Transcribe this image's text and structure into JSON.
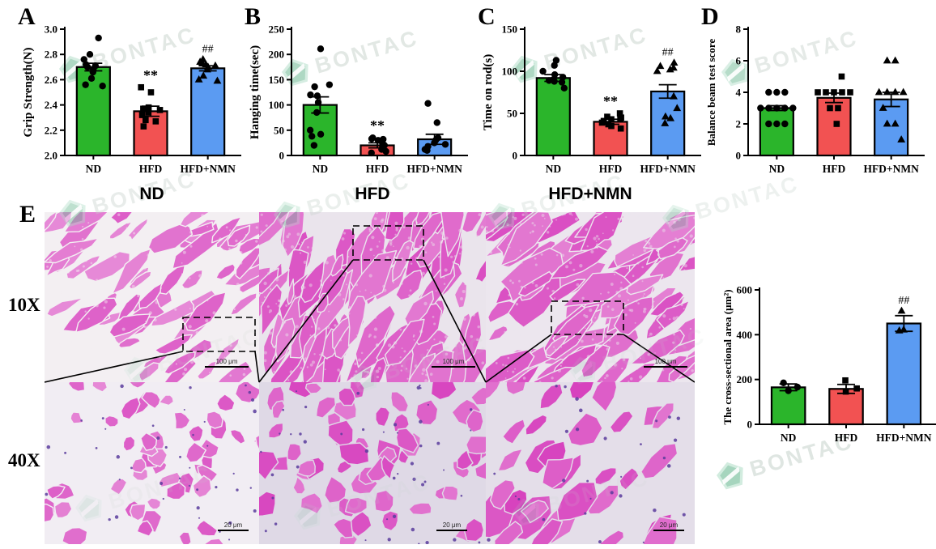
{
  "watermark": {
    "text": "BONTAC",
    "text_color": "#c6d2cb",
    "logo_green_dark": "#5fb389",
    "logo_green_light": "#aeddc6"
  },
  "chart_data": [
    {
      "panel": "A",
      "type": "bar",
      "ylabel": "Grip Strength(N)",
      "ylim": [
        2.0,
        3.0
      ],
      "yticks": {
        "values": [
          2.0,
          2.2,
          2.4,
          2.6,
          2.8,
          3.0
        ],
        "labels": [
          "2.0",
          "2.2",
          "2.4",
          "2.6",
          "2.8",
          "3.0"
        ]
      },
      "categories": [
        "ND",
        "HFD",
        "HFD+NMN"
      ],
      "series": [
        {
          "name": "ND",
          "color": "#2bb52b",
          "marker": "circle",
          "mean": 2.7,
          "sem": 0.03,
          "sig": "",
          "points": [
            2.93,
            2.8,
            2.76,
            2.72,
            2.71,
            2.7,
            2.68,
            2.66,
            2.61,
            2.56,
            2.55
          ]
        },
        {
          "name": "HFD",
          "color": "#f25252",
          "marker": "square",
          "mean": 2.35,
          "sem": 0.04,
          "sig": "**",
          "points": [
            2.54,
            2.5,
            2.38,
            2.37,
            2.36,
            2.34,
            2.32,
            2.28,
            2.27,
            2.23
          ]
        },
        {
          "name": "HFD+NMN",
          "color": "#5b9bf2",
          "marker": "triangle",
          "mean": 2.69,
          "sem": 0.02,
          "sig": "##",
          "points": [
            2.76,
            2.74,
            2.73,
            2.72,
            2.71,
            2.7,
            2.68,
            2.63,
            2.6,
            2.59
          ]
        }
      ]
    },
    {
      "panel": "B",
      "type": "bar",
      "ylabel": "Hanging time(sec)",
      "ylim": [
        0,
        250
      ],
      "yticks": {
        "values": [
          0,
          50,
          100,
          150,
          200,
          250
        ],
        "labels": [
          "0",
          "50",
          "100",
          "150",
          "200",
          "250"
        ]
      },
      "categories": [
        "ND",
        "HFD",
        "HFD+NMN"
      ],
      "series": [
        {
          "name": "ND",
          "color": "#2bb52b",
          "marker": "circle",
          "mean": 100,
          "sem": 16,
          "sig": "",
          "points": [
            211,
            140,
            136,
            120,
            118,
            105,
            85,
            50,
            42,
            38,
            20
          ]
        },
        {
          "name": "HFD",
          "color": "#f25252",
          "marker": "circle",
          "mean": 20,
          "sem": 5,
          "sig": "**",
          "points": [
            35,
            33,
            32,
            30,
            25,
            20,
            15,
            12,
            8,
            5
          ]
        },
        {
          "name": "HFD+NMN",
          "color": "#5b9bf2",
          "marker": "circle",
          "mean": 32,
          "sem": 10,
          "sig": "",
          "points": [
            103,
            65,
            35,
            30,
            25,
            22,
            18,
            12,
            10
          ]
        }
      ]
    },
    {
      "panel": "C",
      "type": "bar",
      "ylabel": "Time on rod(s)",
      "ylim": [
        0,
        150
      ],
      "yticks": {
        "values": [
          0,
          50,
          100,
          150
        ],
        "labels": [
          "0",
          "50",
          "100",
          "150"
        ]
      },
      "categories": [
        "ND",
        "HFD",
        "HFD+NMN"
      ],
      "series": [
        {
          "name": "ND",
          "color": "#2bb52b",
          "marker": "circle",
          "mean": 92,
          "sem": 4,
          "sig": "",
          "points": [
            113,
            107,
            100,
            96,
            93,
            90,
            89,
            88,
            87,
            80
          ]
        },
        {
          "name": "HFD",
          "color": "#f25252",
          "marker": "square",
          "mean": 40,
          "sem": 3,
          "sig": "**",
          "points": [
            50,
            46,
            45,
            44,
            43,
            41,
            39,
            37,
            35,
            32
          ]
        },
        {
          "name": "HFD+NMN",
          "color": "#5b9bf2",
          "marker": "triangle",
          "mean": 76,
          "sem": 8,
          "sig": "##",
          "points": [
            110,
            106,
            104,
            102,
            100,
            70,
            56,
            46,
            44,
            38
          ]
        }
      ]
    },
    {
      "panel": "D",
      "type": "bar",
      "ylabel": "Balance beam test score",
      "ylim": [
        0,
        8
      ],
      "yticks": {
        "values": [
          0,
          2,
          4,
          6,
          8
        ],
        "labels": [
          "0",
          "2",
          "4",
          "6",
          "8"
        ]
      },
      "categories": [
        "ND",
        "HFD",
        "HFD+NMN"
      ],
      "series": [
        {
          "name": "ND",
          "color": "#2bb52b",
          "marker": "circle",
          "mean": 3.0,
          "sem": 0.15,
          "sig": "",
          "points": [
            4,
            4,
            4,
            3,
            3,
            3,
            3,
            3,
            2,
            2,
            2
          ]
        },
        {
          "name": "HFD",
          "color": "#f25252",
          "marker": "square",
          "mean": 3.65,
          "sem": 0.3,
          "sig": "",
          "points": [
            5,
            4,
            4,
            4,
            4,
            4,
            3,
            3,
            2
          ]
        },
        {
          "name": "HFD+NMN",
          "color": "#5b9bf2",
          "marker": "triangle",
          "mean": 3.55,
          "sem": 0.45,
          "sig": "",
          "points": [
            6,
            6,
            4,
            4,
            4,
            4,
            3,
            2,
            2,
            1
          ]
        }
      ]
    },
    {
      "panel": "",
      "type": "bar",
      "ylabel": "The cross-sectional area (μm²)",
      "ylim": [
        0,
        600
      ],
      "yticks": {
        "values": [
          0,
          200,
          400,
          600
        ],
        "labels": [
          "0",
          "200",
          "400",
          "600"
        ]
      },
      "categories": [
        "ND",
        "HFD",
        "HFD+NMN"
      ],
      "series": [
        {
          "name": "ND",
          "color": "#2bb52b",
          "marker": "circle",
          "mean": 165,
          "sem": 15,
          "sig": "",
          "points": [
            185,
            166,
            150
          ]
        },
        {
          "name": "HFD",
          "color": "#f25252",
          "marker": "square",
          "mean": 158,
          "sem": 20,
          "sig": "",
          "points": [
            196,
            160,
            146
          ]
        },
        {
          "name": "HFD+NMN",
          "color": "#5b9bf2",
          "marker": "triangle",
          "mean": 450,
          "sem": 35,
          "sig": "##",
          "points": [
            506,
            422,
            418
          ]
        }
      ]
    }
  ],
  "panel_e": {
    "label": "E",
    "col_headers": [
      "ND",
      "HFD",
      "HFD+NMN"
    ],
    "row_labels": [
      "10X",
      "40X"
    ],
    "scalebar_10x": "100 μm",
    "scalebar_40x": "20 μm",
    "histology_colors": {
      "stain_pink": "#e355ca",
      "background_10x": "#f2eef2",
      "background_40x": "#e4dee9",
      "nuclei": "#5a3c9c"
    }
  }
}
